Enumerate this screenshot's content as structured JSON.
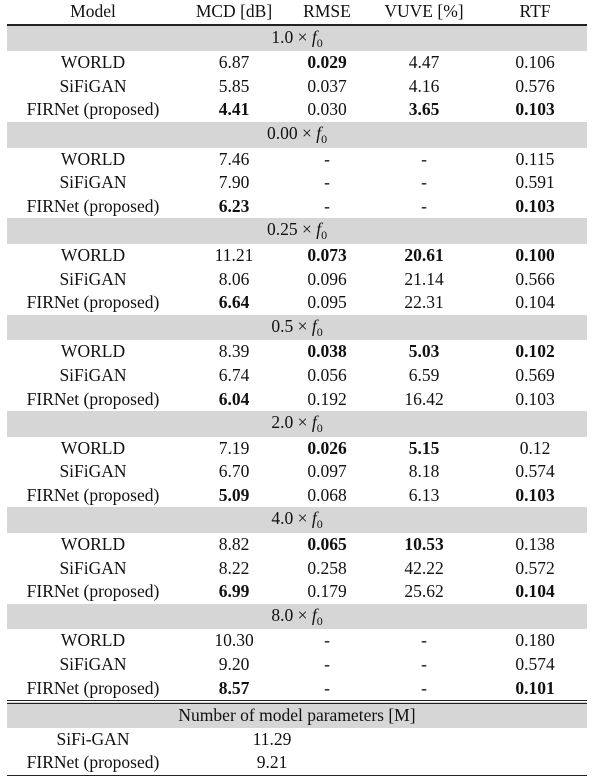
{
  "header": {
    "model": "Model",
    "mcd": "MCD [dB]",
    "rmse": "RMSE",
    "vuve": "VUVE [%]",
    "rtf": "RTF"
  },
  "sections": [
    {
      "factor": "1.0",
      "rows": [
        {
          "model": "WORLD",
          "mcd": "6.87",
          "rmse": "0.029",
          "vuve": "4.47",
          "rtf": "0.106",
          "bold": [
            "rmse"
          ]
        },
        {
          "model": "SiFiGAN",
          "mcd": "5.85",
          "rmse": "0.037",
          "vuve": "4.16",
          "rtf": "0.576",
          "bold": []
        },
        {
          "model": "FIRNet (proposed)",
          "mcd": "4.41",
          "rmse": "0.030",
          "vuve": "3.65",
          "rtf": "0.103",
          "bold": [
            "mcd",
            "vuve",
            "rtf"
          ]
        }
      ]
    },
    {
      "factor": "0.00",
      "rows": [
        {
          "model": "WORLD",
          "mcd": "7.46",
          "rmse": "-",
          "vuve": "-",
          "rtf": "0.115",
          "bold": []
        },
        {
          "model": "SiFiGAN",
          "mcd": "7.90",
          "rmse": "-",
          "vuve": "-",
          "rtf": "0.591",
          "bold": []
        },
        {
          "model": "FIRNet (proposed)",
          "mcd": "6.23",
          "rmse": "-",
          "vuve": "-",
          "rtf": "0.103",
          "bold": [
            "mcd",
            "rtf"
          ]
        }
      ]
    },
    {
      "factor": "0.25",
      "rows": [
        {
          "model": "WORLD",
          "mcd": "11.21",
          "rmse": "0.073",
          "vuve": "20.61",
          "rtf": "0.100",
          "bold": [
            "rmse",
            "vuve",
            "rtf"
          ]
        },
        {
          "model": "SiFiGAN",
          "mcd": "8.06",
          "rmse": "0.096",
          "vuve": "21.14",
          "rtf": "0.566",
          "bold": []
        },
        {
          "model": "FIRNet (proposed)",
          "mcd": "6.64",
          "rmse": "0.095",
          "vuve": "22.31",
          "rtf": "0.104",
          "bold": [
            "mcd"
          ]
        }
      ]
    },
    {
      "factor": "0.5",
      "rows": [
        {
          "model": "WORLD",
          "mcd": "8.39",
          "rmse": "0.038",
          "vuve": "5.03",
          "rtf": "0.102",
          "bold": [
            "rmse",
            "vuve",
            "rtf"
          ]
        },
        {
          "model": "SiFiGAN",
          "mcd": "6.74",
          "rmse": "0.056",
          "vuve": "6.59",
          "rtf": "0.569",
          "bold": []
        },
        {
          "model": "FIRNet (proposed)",
          "mcd": "6.04",
          "rmse": "0.192",
          "vuve": "16.42",
          "rtf": "0.103",
          "bold": [
            "mcd"
          ]
        }
      ]
    },
    {
      "factor": "2.0",
      "rows": [
        {
          "model": "WORLD",
          "mcd": "7.19",
          "rmse": "0.026",
          "vuve": "5.15",
          "rtf": "0.12",
          "bold": [
            "rmse",
            "vuve"
          ]
        },
        {
          "model": "SiFiGAN",
          "mcd": "6.70",
          "rmse": "0.097",
          "vuve": "8.18",
          "rtf": "0.574",
          "bold": []
        },
        {
          "model": "FIRNet (proposed)",
          "mcd": "5.09",
          "rmse": "0.068",
          "vuve": "6.13",
          "rtf": "0.103",
          "bold": [
            "mcd",
            "rtf"
          ]
        }
      ]
    },
    {
      "factor": "4.0",
      "rows": [
        {
          "model": "WORLD",
          "mcd": "8.82",
          "rmse": "0.065",
          "vuve": "10.53",
          "rtf": "0.138",
          "bold": [
            "rmse",
            "vuve"
          ]
        },
        {
          "model": "SiFiGAN",
          "mcd": "8.22",
          "rmse": "0.258",
          "vuve": "42.22",
          "rtf": "0.572",
          "bold": []
        },
        {
          "model": "FIRNet (proposed)",
          "mcd": "6.99",
          "rmse": "0.179",
          "vuve": "25.62",
          "rtf": "0.104",
          "bold": [
            "mcd",
            "rtf"
          ]
        }
      ]
    },
    {
      "factor": "8.0",
      "rows": [
        {
          "model": "WORLD",
          "mcd": "10.30",
          "rmse": "-",
          "vuve": "-",
          "rtf": "0.180",
          "bold": []
        },
        {
          "model": "SiFiGAN",
          "mcd": "9.20",
          "rmse": "-",
          "vuve": "-",
          "rtf": "0.574",
          "bold": []
        },
        {
          "model": "FIRNet (proposed)",
          "mcd": "8.57",
          "rmse": "-",
          "vuve": "-",
          "rtf": "0.101",
          "bold": [
            "mcd",
            "rtf"
          ]
        }
      ]
    }
  ],
  "params": {
    "title": "Number of model parameters [M]",
    "rows": [
      {
        "model": "SiFi-GAN",
        "value": "11.29"
      },
      {
        "model": "FIRNet (proposed)",
        "value": "9.21"
      }
    ]
  }
}
